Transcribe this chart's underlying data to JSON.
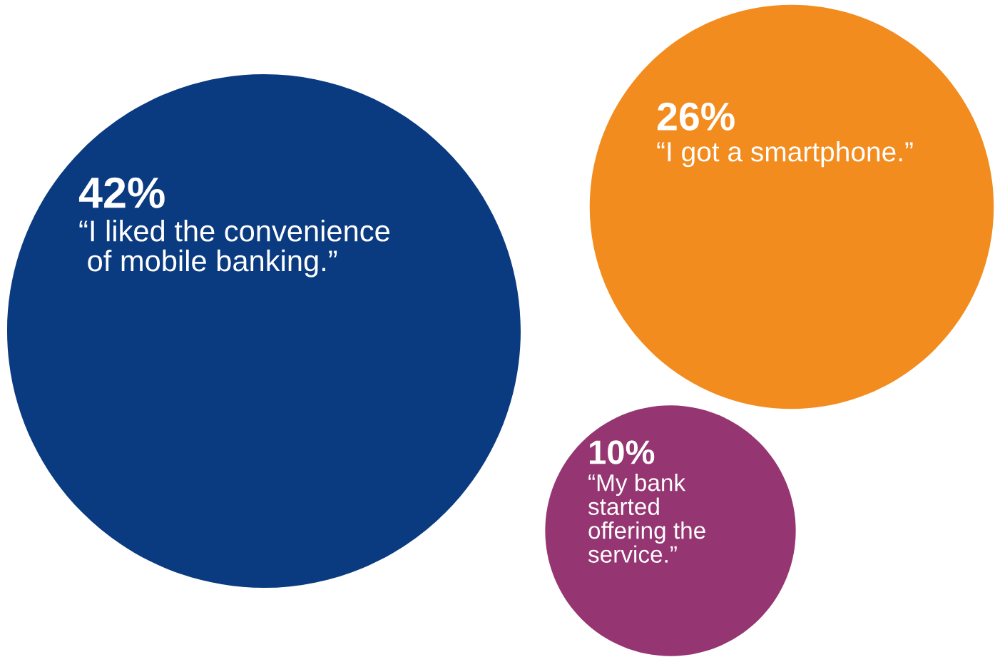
{
  "chart_data": {
    "type": "other",
    "categories": [
      "“I liked the convenience\n of mobile banking.”",
      "“I got a smartphone.”",
      "“My bank\nstarted\noffering the\nservice.”"
    ],
    "values": [
      42,
      26,
      10
    ],
    "value_labels": [
      "42%",
      "26%",
      "10%"
    ],
    "colors": [
      "#0a3a80",
      "#f28c1f",
      "#953572"
    ]
  }
}
